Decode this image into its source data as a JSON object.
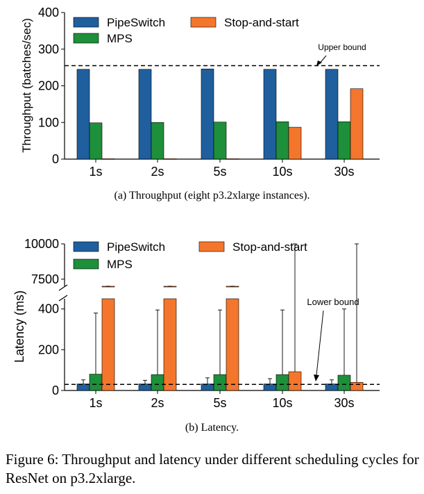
{
  "chart_data": [
    {
      "type": "bar",
      "caption": "(a) Throughput (eight p3.2xlarge instances).",
      "ylabel": "Throughput (batches/sec)",
      "xlabel": "",
      "categories": [
        "1s",
        "2s",
        "5s",
        "10s",
        "30s"
      ],
      "ylim": [
        0,
        400
      ],
      "yticks": [
        "0",
        "100",
        "200",
        "300",
        "400"
      ],
      "series": [
        {
          "name": "PipeSwitch",
          "color": "#1f5f9e",
          "values": [
            245,
            245,
            246,
            245,
            245
          ]
        },
        {
          "name": "MPS",
          "color": "#1e8f3a",
          "values": [
            99,
            100,
            101,
            102,
            102
          ]
        },
        {
          "name": "Stop-and-start",
          "color": "#f4762c",
          "values": [
            1,
            1,
            1,
            87,
            192
          ]
        }
      ],
      "reference_line": {
        "label": "Upper bound",
        "value": 255,
        "style": "dashed"
      },
      "legend_position": "top-left"
    },
    {
      "type": "bar",
      "caption": "(b) Latency.",
      "ylabel": "Latency (ms)",
      "xlabel": "",
      "categories": [
        "1s",
        "2s",
        "5s",
        "10s",
        "30s"
      ],
      "broken_axis": {
        "lower_range": [
          0,
          450
        ],
        "upper_range": [
          7000,
          10000
        ]
      },
      "yticks_lower": [
        "0",
        "200",
        "400"
      ],
      "yticks_upper": [
        "7500",
        "10000"
      ],
      "series": [
        {
          "name": "PipeSwitch",
          "color": "#1f5f9e",
          "values": [
            32,
            32,
            32,
            32,
            32
          ],
          "error_upper": [
            52,
            50,
            62,
            58,
            52
          ]
        },
        {
          "name": "MPS",
          "color": "#1e8f3a",
          "values": [
            80,
            78,
            78,
            78,
            75
          ],
          "error_upper": [
            380,
            395,
            395,
            395,
            400
          ]
        },
        {
          "name": "Stop-and-start",
          "color": "#f4762c",
          "values": [
            6300,
            6400,
            6600,
            92,
            40
          ],
          "error_upper": [
            6400,
            6450,
            6600,
            10000,
            10000
          ]
        }
      ],
      "reference_line": {
        "label": "Lower bound",
        "value": 30,
        "style": "dashed"
      },
      "legend_position": "top-left"
    }
  ],
  "figure_caption": "Figure 6: Throughput and latency under different scheduling cycles for ResNet on p3.2xlarge."
}
